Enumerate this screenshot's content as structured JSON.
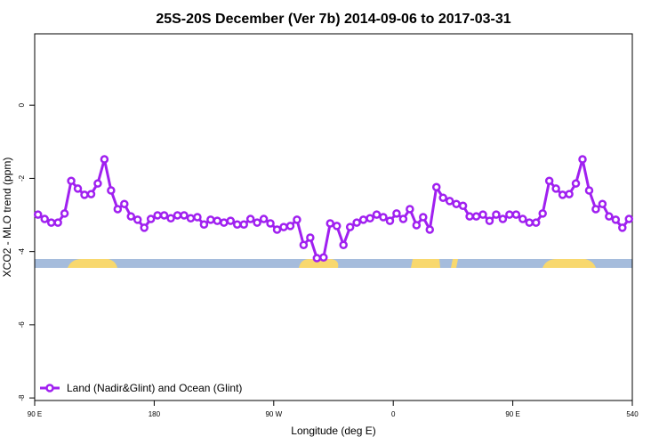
{
  "chart_data": {
    "type": "line",
    "title": "25S-20S December (Ver 7b)   2014-09-06 to 2017-03-31",
    "xlabel": "Longitude (deg E)",
    "ylabel": "XCO2 - MLO trend (ppm)",
    "xlim": [
      90,
      540
    ],
    "ylim": [
      -8.07,
      1.95
    ],
    "xticks": [
      {
        "value": 90,
        "label": "90 E"
      },
      180,
      {
        "value": 270,
        "label": "90 W"
      },
      {
        "value": 360,
        "label": "0"
      },
      {
        "value": 450,
        "label": "90 E"
      },
      540
    ],
    "yticks": [
      -8,
      -6,
      -4,
      -2,
      0
    ],
    "legend": "bottomleft",
    "x": [
      92.5,
      97.5,
      102.5,
      107.5,
      112.5,
      117.5,
      122.5,
      127.5,
      132.5,
      137.5,
      142.5,
      147.5,
      152.5,
      157.5,
      162.5,
      167.5,
      172.5,
      177.5,
      182.5,
      187.5,
      192.5,
      197.5,
      202.5,
      207.5,
      212.5,
      217.5,
      222.5,
      227.5,
      232.5,
      237.5,
      242.5,
      247.5,
      252.5,
      257.5,
      262.5,
      267.5,
      272.5,
      277.5,
      282.5,
      287.5,
      292.5,
      297.5,
      302.5,
      307.5,
      312.5,
      317.5,
      322.5,
      327.5,
      332.5,
      337.5,
      342.5,
      347.5,
      352.5,
      357.5,
      362.5,
      367.5,
      372.5,
      377.5,
      382.5,
      387.5,
      392.5,
      397.5,
      402.5,
      407.5,
      412.5,
      417.5,
      422.5,
      427.5,
      432.5,
      437.5,
      442.5,
      447.5,
      452.5,
      457.5,
      462.5,
      467.5,
      472.5,
      477.5,
      482.5,
      487.5,
      492.5,
      497.5,
      502.5,
      507.5,
      512.5,
      517.5,
      522.5,
      527.5,
      532.5,
      537.5
    ],
    "series": [
      {
        "name": "Land (Nadir&Glint) and Ocean (Glint)",
        "color": "#a020f0",
        "values": [
          -2.99,
          -3.11,
          -3.21,
          -3.21,
          -2.96,
          -2.07,
          -2.28,
          -2.45,
          -2.43,
          -2.14,
          -1.48,
          -2.33,
          -2.84,
          -2.7,
          -3.04,
          -3.13,
          -3.35,
          -3.11,
          -3.01,
          -3.01,
          -3.09,
          -3.01,
          -3.01,
          -3.09,
          -3.06,
          -3.26,
          -3.13,
          -3.16,
          -3.21,
          -3.16,
          -3.26,
          -3.26,
          -3.11,
          -3.21,
          -3.11,
          -3.23,
          -3.4,
          -3.33,
          -3.3,
          -3.13,
          -3.82,
          -3.62,
          -4.18,
          -4.16,
          -3.23,
          -3.3,
          -3.82,
          -3.33,
          -3.21,
          -3.13,
          -3.09,
          -2.99,
          -3.06,
          -3.16,
          -2.96,
          -3.11,
          -2.84,
          -3.28,
          -3.06,
          -3.4,
          -2.24,
          -2.53,
          -2.62,
          -2.7,
          -2.75,
          -3.04,
          -3.04,
          -2.99,
          -3.16,
          -2.99,
          -3.11,
          -2.99,
          -2.99,
          -3.11,
          -3.21,
          -3.21,
          -2.96,
          -2.07,
          -2.28,
          -2.45,
          -2.43,
          -2.14,
          -1.48,
          -2.33,
          -2.84,
          -2.7,
          -3.04,
          -3.13,
          -3.35,
          -3.11
        ]
      }
    ]
  }
}
